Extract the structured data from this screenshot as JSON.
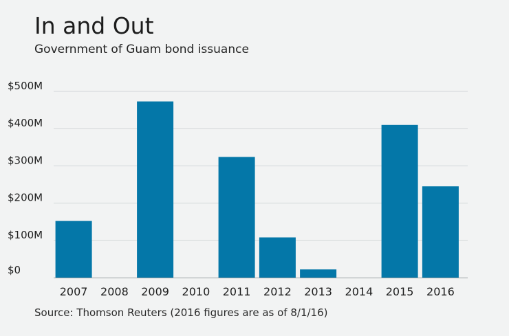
{
  "chart_data": {
    "type": "bar",
    "title": "In and Out",
    "subtitle": "Government of Guam bond issuance",
    "categories": [
      "2007",
      "2008",
      "2009",
      "2010",
      "2011",
      "2012",
      "2013",
      "2014",
      "2015",
      "2016"
    ],
    "values": [
      152,
      0,
      473,
      0,
      324,
      108,
      22,
      0,
      410,
      245
    ],
    "yticks": [
      0,
      100,
      200,
      300,
      400,
      500
    ],
    "ytick_labels": [
      "$0",
      "$100M",
      "$200M",
      "$300M",
      "$400M",
      "$500M"
    ],
    "ylim": [
      0,
      500
    ],
    "grid": true,
    "bar_color": "#0477a8",
    "source": "Source: Thomson Reuters (2016 figures are as of 8/1/16)"
  }
}
